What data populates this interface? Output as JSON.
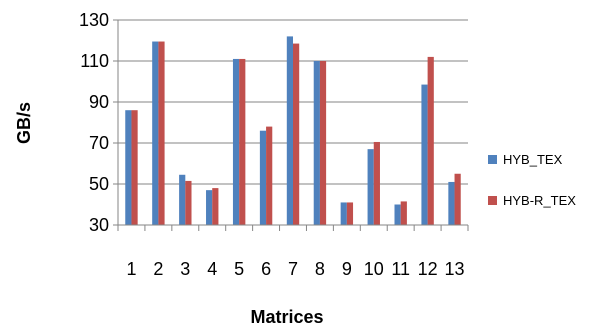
{
  "chart_data": {
    "type": "bar",
    "title": "",
    "xlabel": "Matrices",
    "ylabel": "GB/s",
    "categories": [
      "1",
      "2",
      "3",
      "4",
      "5",
      "6",
      "7",
      "8",
      "9",
      "10",
      "11",
      "12",
      "13"
    ],
    "yticks": [
      "30",
      "50",
      "70",
      "90",
      "110",
      "130"
    ],
    "ylim": [
      30,
      130
    ],
    "grid": true,
    "legend_position": "right",
    "series": [
      {
        "name": "HYB_TEX",
        "color": "#4F81BD",
        "values": [
          86,
          119.5,
          54.5,
          47,
          111,
          76,
          122,
          110,
          41,
          67,
          40,
          98.5,
          51
        ]
      },
      {
        "name": "HYB-R_TEX",
        "color": "#C0504D",
        "values": [
          86,
          119.5,
          51.5,
          48,
          111,
          78,
          118.5,
          110,
          41,
          70.5,
          41.5,
          112,
          55
        ]
      }
    ]
  }
}
